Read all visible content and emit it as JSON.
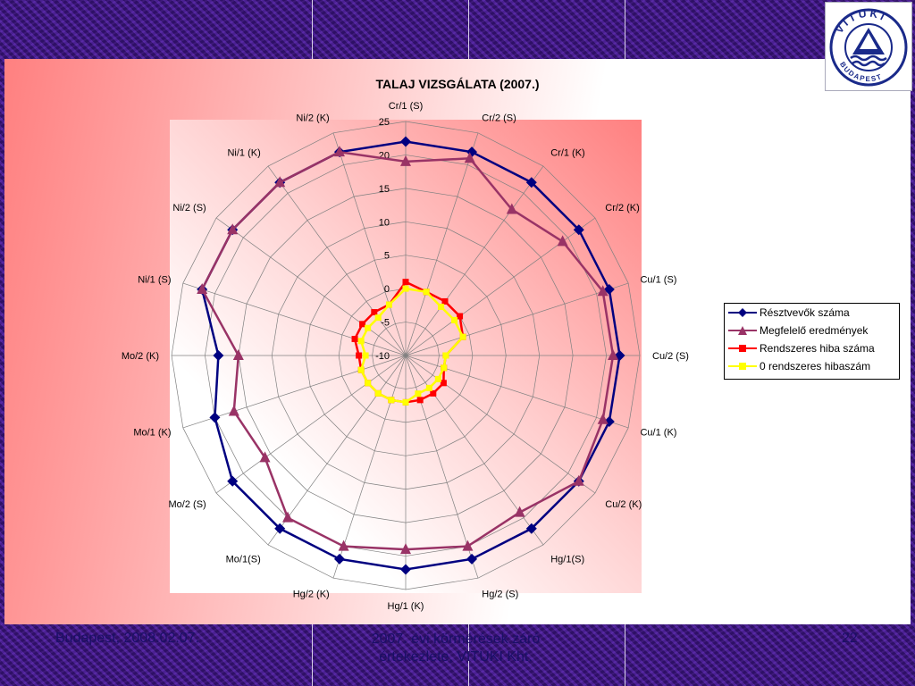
{
  "slide": {
    "footer_left": "Budapest, 2008.02.07.",
    "footer_center_line1": "2007. évi körmérések záró",
    "footer_center_line2": "értekezlete, VITUKI Kht.",
    "page_number": "22",
    "logo_top": "VITUKI",
    "logo_bottom": "BUDAPEST"
  },
  "chart_data": {
    "type": "radar",
    "title": "TALAJ VIZSGÁLATA (2007.)",
    "axis": {
      "min": -10,
      "max": 25,
      "step": 5,
      "tick_labels": [
        "-10",
        "-5",
        "0",
        "5",
        "10",
        "15",
        "20",
        "25"
      ]
    },
    "categories": [
      "Cr/1 (S)",
      "Cr/2 (S)",
      "Cr/1 (K)",
      "Cr/2 (K)",
      "Cu/1 (S)",
      "Cu/2 (S)",
      "Cu/1 (K)",
      "Cu/2 (K)",
      "Hg/1(S)",
      "Hg/2 (S)",
      "Hg/1 (K)",
      "Hg/2 (K)",
      "Mo/1(S)",
      "Mo/2 (S)",
      "Mo/1 (K)",
      "Mo/2 (K)",
      "Ni/1 (S)",
      "Ni/2 (S)",
      "Ni/1 (K)",
      "Ni/2 (K)"
    ],
    "series": [
      {
        "name": "Résztvevők száma",
        "color": "#000080",
        "marker": "diamond",
        "values": [
          22,
          22,
          22,
          22,
          22,
          22,
          22,
          22,
          22,
          22,
          22,
          22,
          22,
          22,
          20,
          18,
          22,
          22,
          22,
          22
        ]
      },
      {
        "name": "Megfelelő eredmények",
        "color": "#993366",
        "marker": "triangle",
        "values": [
          19,
          21,
          17,
          19,
          21,
          21,
          21,
          22,
          19,
          20,
          19,
          20,
          20,
          16,
          17,
          15,
          22,
          22,
          22,
          22
        ]
      },
      {
        "name": "Rendszeres hiba száma",
        "color": "#ff0000",
        "marker": "square",
        "values": [
          1,
          0,
          0,
          0,
          -1,
          -4,
          -4,
          -3,
          -3,
          -3,
          -3,
          -3,
          -3,
          -3,
          -3,
          -3,
          -2,
          -2,
          -2,
          -2
        ]
      },
      {
        "name": "0 rendszeres hibaszám",
        "color": "#ffff00",
        "marker": "square",
        "values": [
          0,
          0,
          -1,
          -1,
          -1,
          -4,
          -4,
          -4,
          -4,
          -4,
          -3,
          -3,
          -3,
          -3,
          -3,
          -4,
          -3,
          -3,
          -3,
          -2
        ]
      }
    ],
    "legend_position": "right"
  }
}
